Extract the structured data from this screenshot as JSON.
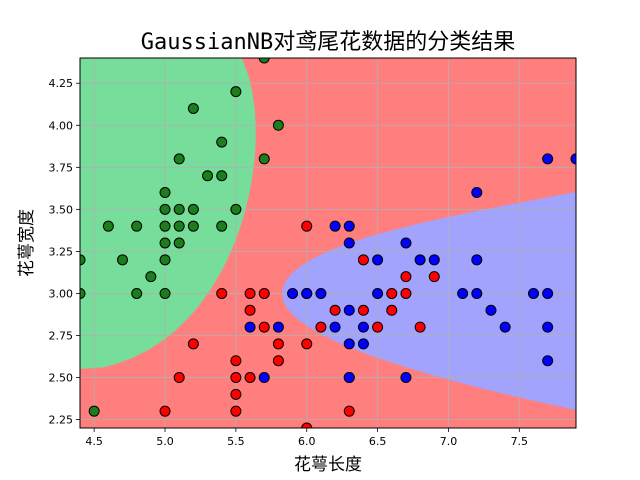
{
  "chart_data": {
    "type": "scatter",
    "title": "GaussianNB对鸢尾花数据的分类结果",
    "xlabel": "花萼长度",
    "ylabel": "花萼宽度",
    "xlim": [
      4.4,
      7.9
    ],
    "ylim": [
      2.2,
      4.4
    ],
    "xticks": [
      "4.5",
      "5.0",
      "5.5",
      "6.0",
      "6.5",
      "7.0",
      "7.5"
    ],
    "yticks": [
      "2.25",
      "2.50",
      "2.75",
      "3.00",
      "3.25",
      "3.50",
      "3.75",
      "4.00",
      "4.25"
    ],
    "grid": true,
    "region_colors": {
      "class0": "#77dd9a",
      "class1": "#ff7f7f",
      "class2": "#a1a3fd"
    },
    "series": [
      {
        "color": "#1b7d1b",
        "points": [
          [
            4.4,
            3.0
          ],
          [
            4.4,
            3.2
          ],
          [
            4.5,
            2.3
          ],
          [
            4.6,
            3.4
          ],
          [
            4.7,
            3.2
          ],
          [
            4.8,
            3.0
          ],
          [
            4.8,
            3.4
          ],
          [
            4.9,
            3.1
          ],
          [
            5.0,
            3.0
          ],
          [
            5.0,
            3.2
          ],
          [
            5.0,
            3.3
          ],
          [
            5.0,
            3.4
          ],
          [
            5.0,
            3.5
          ],
          [
            5.0,
            3.6
          ],
          [
            5.1,
            3.3
          ],
          [
            5.1,
            3.4
          ],
          [
            5.1,
            3.5
          ],
          [
            5.1,
            3.8
          ],
          [
            5.2,
            3.4
          ],
          [
            5.2,
            3.5
          ],
          [
            5.2,
            4.1
          ],
          [
            5.3,
            3.7
          ],
          [
            5.4,
            3.4
          ],
          [
            5.4,
            3.7
          ],
          [
            5.4,
            3.9
          ],
          [
            5.5,
            3.5
          ],
          [
            5.5,
            4.2
          ],
          [
            5.7,
            3.8
          ],
          [
            5.7,
            4.4
          ],
          [
            5.8,
            4.0
          ]
        ]
      },
      {
        "color": "#ff0000",
        "points": [
          [
            5.0,
            2.3
          ],
          [
            5.1,
            2.5
          ],
          [
            5.2,
            2.7
          ],
          [
            5.4,
            3.0
          ],
          [
            5.5,
            2.3
          ],
          [
            5.5,
            2.4
          ],
          [
            5.5,
            2.5
          ],
          [
            5.5,
            2.6
          ],
          [
            5.6,
            2.5
          ],
          [
            5.6,
            2.9
          ],
          [
            5.6,
            3.0
          ],
          [
            5.7,
            2.8
          ],
          [
            5.7,
            3.0
          ],
          [
            5.8,
            2.6
          ],
          [
            5.8,
            2.7
          ],
          [
            6.0,
            2.2
          ],
          [
            6.0,
            2.7
          ],
          [
            6.0,
            3.0
          ],
          [
            6.0,
            3.4
          ],
          [
            6.1,
            2.8
          ],
          [
            6.2,
            2.9
          ],
          [
            6.3,
            2.3
          ],
          [
            6.3,
            2.5
          ],
          [
            6.4,
            2.9
          ],
          [
            6.4,
            3.2
          ],
          [
            6.5,
            2.8
          ],
          [
            6.6,
            2.9
          ],
          [
            6.6,
            3.0
          ],
          [
            6.7,
            3.0
          ],
          [
            6.7,
            3.1
          ],
          [
            6.8,
            2.8
          ],
          [
            6.9,
            3.1
          ]
        ]
      },
      {
        "color": "#0000ff",
        "points": [
          [
            5.6,
            2.8
          ],
          [
            5.7,
            2.5
          ],
          [
            5.8,
            2.8
          ],
          [
            5.9,
            3.0
          ],
          [
            6.0,
            3.0
          ],
          [
            6.1,
            3.0
          ],
          [
            6.2,
            2.8
          ],
          [
            6.2,
            3.4
          ],
          [
            6.3,
            2.5
          ],
          [
            6.3,
            2.7
          ],
          [
            6.3,
            2.9
          ],
          [
            6.3,
            3.3
          ],
          [
            6.3,
            3.4
          ],
          [
            6.4,
            2.7
          ],
          [
            6.4,
            2.8
          ],
          [
            6.5,
            3.0
          ],
          [
            6.5,
            3.2
          ],
          [
            6.7,
            2.5
          ],
          [
            6.7,
            3.3
          ],
          [
            6.8,
            3.2
          ],
          [
            6.9,
            3.2
          ],
          [
            7.1,
            3.0
          ],
          [
            7.2,
            3.0
          ],
          [
            7.2,
            3.2
          ],
          [
            7.2,
            3.6
          ],
          [
            7.3,
            2.9
          ],
          [
            7.4,
            2.8
          ],
          [
            7.6,
            3.0
          ],
          [
            7.7,
            2.6
          ],
          [
            7.7,
            2.8
          ],
          [
            7.7,
            3.0
          ],
          [
            7.7,
            3.8
          ],
          [
            7.9,
            3.8
          ]
        ]
      }
    ]
  }
}
